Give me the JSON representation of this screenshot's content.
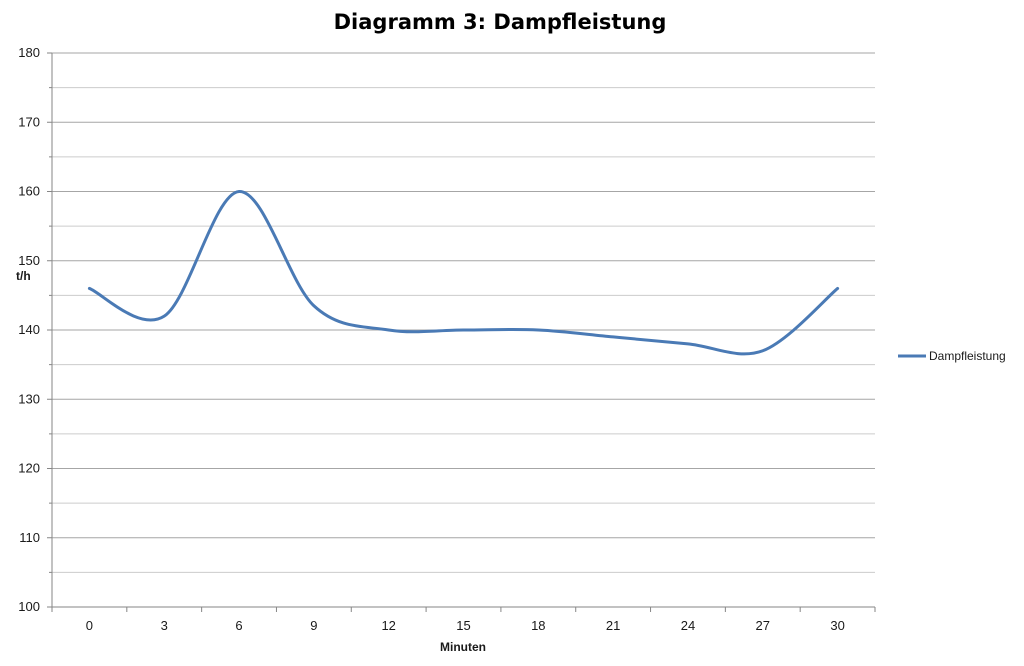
{
  "chart_data": {
    "type": "line",
    "title": "Diagramm 3: Dampfleistung",
    "xlabel": "Minuten",
    "ylabel": "t/h",
    "categories": [
      "0",
      "3",
      "6",
      "9",
      "12",
      "15",
      "18",
      "21",
      "24",
      "27",
      "30"
    ],
    "series": [
      {
        "name": "Dampfleistung",
        "color": "#4a7ab5",
        "smooth": true,
        "values": [
          146,
          142,
          160,
          143.5,
          140,
          140,
          140,
          139,
          138,
          137,
          146
        ]
      }
    ],
    "ylim": [
      100,
      180
    ],
    "yticks": [
      100,
      110,
      120,
      130,
      140,
      150,
      160,
      170,
      180
    ],
    "grid": {
      "horizontal": true,
      "minor_horizontal": true,
      "vertical": false
    },
    "legend_position": "right"
  }
}
